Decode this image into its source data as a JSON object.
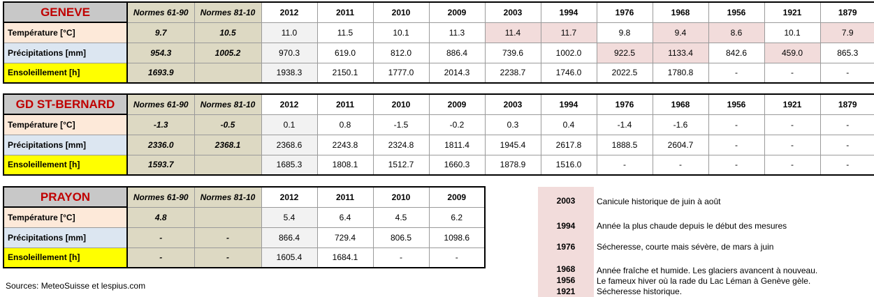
{
  "geneve": {
    "name": "GENEVE",
    "headers": [
      "Normes 61-90",
      "Normes 81-10",
      "2012",
      "2011",
      "2010",
      "2009",
      "2003",
      "1994",
      "1976",
      "1968",
      "1956",
      "1921",
      "1879"
    ],
    "rows": [
      {
        "label": "Température [°C]",
        "values": [
          "9.7",
          "10.5",
          "11.0",
          "11.5",
          "10.1",
          "11.3",
          "11.4",
          "11.7",
          "9.8",
          "9.4",
          "8.6",
          "10.1",
          "7.9"
        ]
      },
      {
        "label": "Précipitations [mm]",
        "values": [
          "954.3",
          "1005.2",
          "970.3",
          "619.0",
          "812.0",
          "886.4",
          "739.6",
          "1002.0",
          "922.5",
          "1133.4",
          "842.6",
          "459.0",
          "865.3"
        ]
      },
      {
        "label": "Ensoleillement [h]",
        "values": [
          "1693.9",
          "",
          "1938.3",
          "2150.1",
          "1777.0",
          "2014.3",
          "2238.7",
          "1746.0",
          "2022.5",
          "1780.8",
          "-",
          "-",
          "-"
        ]
      }
    ]
  },
  "bernard": {
    "name": "GD ST-BERNARD",
    "headers": [
      "Normes 61-90",
      "Normes 81-10",
      "2012",
      "2011",
      "2010",
      "2009",
      "2003",
      "1994",
      "1976",
      "1968",
      "1956",
      "1921",
      "1879"
    ],
    "rows": [
      {
        "label": "Température [°C]",
        "values": [
          "-1.3",
          "-0.5",
          "0.1",
          "0.8",
          "-1.5",
          "-0.2",
          "0.3",
          "0.4",
          "-1.4",
          "-1.6",
          "-",
          "-",
          "-"
        ]
      },
      {
        "label": "Précipitations [mm]",
        "values": [
          "2336.0",
          "2368.1",
          "2368.6",
          "2243.8",
          "2324.8",
          "1811.4",
          "1945.4",
          "2617.8",
          "1888.5",
          "2604.7",
          "-",
          "-",
          "-"
        ]
      },
      {
        "label": "Ensoleillement [h]",
        "values": [
          "1593.7",
          "",
          "1685.3",
          "1808.1",
          "1512.7",
          "1660.3",
          "1878.9",
          "1516.0",
          "-",
          "-",
          "-",
          "-",
          "-"
        ]
      }
    ]
  },
  "prayon": {
    "name": "PRAYON",
    "headers": [
      "Normes 61-90",
      "Normes 81-10",
      "2012",
      "2011",
      "2010",
      "2009"
    ],
    "rows": [
      {
        "label": "Température [°C]",
        "values": [
          "4.8",
          "",
          "5.4",
          "6.4",
          "4.5",
          "6.2"
        ]
      },
      {
        "label": "Précipitations [mm]",
        "values": [
          "-",
          "-",
          "866.4",
          "729.4",
          "806.5",
          "1098.6"
        ]
      },
      {
        "label": "Ensoleillement [h]",
        "values": [
          "-",
          "-",
          "1605.4",
          "1684.1",
          "-",
          "-"
        ]
      }
    ]
  },
  "legend": [
    {
      "year": "2003",
      "text": "Canicule historique de juin à août"
    },
    {
      "year": "1994",
      "text": "Année la plus chaude depuis le début des mesures"
    },
    {
      "year": "1976",
      "text": "Sécheresse, courte mais sévère, de mars à juin"
    },
    {
      "year": "1968",
      "text": "Année fraîche et humide. Les glaciers avancent à nouveau."
    },
    {
      "year": "1956",
      "text": "Le fameux hiver où la rade du Lac Léman à Genève gèle."
    },
    {
      "year": "1921",
      "text": "Sécheresse historique."
    }
  ],
  "sources": "Sources: MeteoSuisse et lespius.com",
  "colors": {
    "station_name": "#c00000",
    "station_bg": "#c8c8c8",
    "norm_bg": "#ddd9c3",
    "temperature_bg": "#fde9d9",
    "precipitation_bg": "#dce6f1",
    "sunshine_bg": "#ffff00",
    "highlight_bg": "#f2dcdb"
  }
}
